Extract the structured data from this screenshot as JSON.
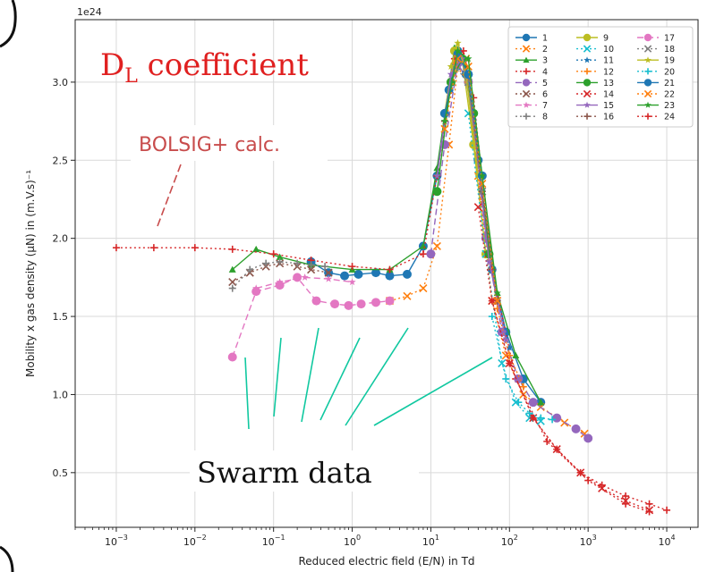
{
  "chart_data": {
    "type": "scatter",
    "title": "",
    "xlabel": "Reduced electric field (E/N) in Td",
    "ylabel": "Mobility x gas density (μN) in (m.V.s)⁻¹",
    "y_offset_label": "1e24",
    "xscale": "log",
    "xlim": [
      0.0003,
      25000
    ],
    "ylim": [
      0.15,
      3.4
    ],
    "grid": true,
    "legend_placement": "top-right",
    "x_ticks": [
      {
        "value": 0.001,
        "base": "10",
        "exp": "−3"
      },
      {
        "value": 0.01,
        "base": "10",
        "exp": "−2"
      },
      {
        "value": 0.1,
        "base": "10",
        "exp": "−1"
      },
      {
        "value": 1,
        "base": "10",
        "exp": "0"
      },
      {
        "value": 10,
        "base": "10",
        "exp": "1"
      },
      {
        "value": 100,
        "base": "10",
        "exp": "2"
      },
      {
        "value": 1000,
        "base": "10",
        "exp": "3"
      },
      {
        "value": 10000,
        "base": "10",
        "exp": "4"
      }
    ],
    "y_ticks": [
      {
        "value": 0.5,
        "label": "0.5"
      },
      {
        "value": 1.0,
        "label": "1.0"
      },
      {
        "value": 1.5,
        "label": "1.5"
      },
      {
        "value": 2.0,
        "label": "2.0"
      },
      {
        "value": 2.5,
        "label": "2.5"
      },
      {
        "value": 3.0,
        "label": "3.0"
      }
    ],
    "series": [
      {
        "name": "1",
        "color": "#1f77b4",
        "marker": "circle",
        "line": "solid",
        "x": [
          0.3,
          0.5,
          0.8,
          1.2,
          2,
          3,
          5,
          8,
          12,
          17,
          22,
          28,
          40,
          60,
          90,
          150,
          250
        ],
        "y": [
          1.85,
          1.78,
          1.76,
          1.77,
          1.78,
          1.76,
          1.77,
          1.95,
          2.4,
          2.95,
          3.2,
          3.05,
          2.5,
          1.8,
          1.4,
          1.1,
          0.95
        ]
      },
      {
        "name": "2",
        "color": "#ff7f0e",
        "marker": "x",
        "line": "dotted",
        "x": [
          3,
          5,
          8,
          12,
          17,
          22,
          28,
          40,
          60,
          90,
          150,
          250,
          500,
          900
        ],
        "y": [
          1.6,
          1.63,
          1.68,
          1.95,
          2.6,
          3.1,
          3.15,
          2.4,
          1.6,
          1.25,
          1.0,
          0.92,
          0.82,
          0.75
        ]
      },
      {
        "name": "3",
        "color": "#2ca02c",
        "marker": "triangle",
        "line": "solid",
        "x": [
          0.03,
          0.06,
          0.12,
          0.3,
          1,
          3,
          8,
          12,
          20,
          28,
          45,
          70,
          120,
          250
        ],
        "y": [
          1.8,
          1.93,
          1.88,
          1.83,
          1.8,
          1.8,
          1.95,
          2.45,
          3.22,
          3.1,
          2.3,
          1.65,
          1.25,
          0.95
        ]
      },
      {
        "name": "4",
        "color": "#d62728",
        "marker": "plus",
        "line": "dotted",
        "x": [
          0.001,
          0.003,
          0.01,
          0.03,
          0.1,
          0.3,
          1,
          3,
          8,
          12,
          20,
          26,
          35,
          60,
          120,
          300,
          1000,
          3000,
          6000
        ],
        "y": [
          1.94,
          1.94,
          1.94,
          1.93,
          1.9,
          1.86,
          1.82,
          1.8,
          1.9,
          2.4,
          3.15,
          3.2,
          2.9,
          1.8,
          1.1,
          0.7,
          0.45,
          0.3,
          0.25
        ]
      },
      {
        "name": "5",
        "color": "#9467bd",
        "marker": "circle",
        "line": "dashed",
        "x": [
          10,
          15,
          22,
          30,
          50,
          80,
          130,
          200,
          400,
          700,
          1000
        ],
        "y": [
          1.9,
          2.6,
          3.12,
          3.0,
          2.0,
          1.4,
          1.1,
          0.95,
          0.85,
          0.78,
          0.72
        ]
      },
      {
        "name": "6",
        "color": "#8c564b",
        "marker": "x",
        "line": "dotted",
        "x": [
          0.03,
          0.05,
          0.08,
          0.12,
          0.2,
          0.3,
          0.5
        ],
        "y": [
          1.72,
          1.78,
          1.82,
          1.84,
          1.82,
          1.8,
          1.78
        ]
      },
      {
        "name": "7",
        "color": "#e377c2",
        "marker": "star",
        "line": "dashed",
        "x": [
          0.06,
          0.12,
          0.25,
          0.5,
          1
        ],
        "y": [
          1.68,
          1.72,
          1.75,
          1.74,
          1.72
        ]
      },
      {
        "name": "8",
        "color": "#7f7f7f",
        "marker": "plus",
        "line": "dotted",
        "x": [
          0.03,
          0.05,
          0.08,
          0.12,
          0.2,
          0.3,
          0.45
        ],
        "y": [
          1.68,
          1.8,
          1.84,
          1.85,
          1.84,
          1.83,
          1.82
        ]
      },
      {
        "name": "9",
        "color": "#bcbd22",
        "marker": "circle",
        "line": "solid",
        "x": [
          15,
          20,
          25,
          35,
          50
        ],
        "y": [
          2.8,
          3.2,
          3.15,
          2.6,
          1.9
        ]
      },
      {
        "name": "10",
        "color": "#17becf",
        "marker": "x",
        "line": "dotted",
        "x": [
          30,
          50,
          80,
          120,
          180,
          250
        ],
        "y": [
          2.8,
          1.9,
          1.2,
          0.95,
          0.85,
          0.83
        ]
      },
      {
        "name": "11",
        "color": "#1f77b4",
        "marker": "star",
        "line": "dotted",
        "x": [
          20,
          30,
          45,
          70,
          100
        ],
        "y": [
          3.1,
          3.05,
          2.3,
          1.6,
          1.3
        ]
      },
      {
        "name": "12",
        "color": "#ff7f0e",
        "marker": "plus",
        "line": "dotted",
        "x": [
          20,
          30,
          45,
          70,
          100,
          150
        ],
        "y": [
          3.12,
          3.0,
          2.25,
          1.55,
          1.25,
          1.05
        ]
      },
      {
        "name": "13",
        "color": "#2ca02c",
        "marker": "circle",
        "line": "solid",
        "x": [
          12,
          18,
          25,
          35,
          55
        ],
        "y": [
          2.3,
          3.0,
          3.15,
          2.8,
          1.9
        ]
      },
      {
        "name": "14",
        "color": "#d62728",
        "marker": "x",
        "line": "dotted",
        "x": [
          40,
          60,
          100,
          200,
          400,
          800,
          1500,
          3000,
          6000
        ],
        "y": [
          2.2,
          1.6,
          1.2,
          0.85,
          0.65,
          0.5,
          0.4,
          0.32,
          0.26
        ]
      },
      {
        "name": "15",
        "color": "#9467bd",
        "marker": "star",
        "line": "solid",
        "x": [
          12,
          18,
          25,
          35,
          55,
          90
        ],
        "y": [
          2.4,
          3.05,
          3.15,
          2.75,
          1.85,
          1.35
        ]
      },
      {
        "name": "16",
        "color": "#8c564b",
        "marker": "plus",
        "line": "dotted",
        "x": [
          15,
          22,
          30,
          45,
          70
        ],
        "y": [
          2.75,
          3.18,
          3.05,
          2.3,
          1.6
        ]
      },
      {
        "name": "17",
        "color": "#e377c2",
        "marker": "circle",
        "line": "dashed",
        "x": [
          0.03,
          0.06,
          0.12,
          0.2,
          0.35,
          0.6,
          0.9,
          1.3,
          2,
          3
        ],
        "y": [
          1.24,
          1.66,
          1.7,
          1.75,
          1.6,
          1.58,
          1.57,
          1.58,
          1.59,
          1.6
        ]
      },
      {
        "name": "18",
        "color": "#7f7f7f",
        "marker": "x",
        "line": "dotted",
        "x": [
          20,
          30,
          45,
          70
        ],
        "y": [
          3.1,
          3.0,
          2.3,
          1.6
        ]
      },
      {
        "name": "19",
        "color": "#bcbd22",
        "marker": "star",
        "line": "solid",
        "x": [
          18,
          22,
          28,
          40
        ],
        "y": [
          3.1,
          3.25,
          3.05,
          2.4
        ]
      },
      {
        "name": "20",
        "color": "#17becf",
        "marker": "plus",
        "line": "dotted",
        "x": [
          60,
          90,
          130,
          180,
          250,
          350
        ],
        "y": [
          1.5,
          1.1,
          0.95,
          0.88,
          0.85,
          0.84
        ]
      },
      {
        "name": "21",
        "color": "#1f77b4",
        "marker": "circle",
        "line": "solid",
        "x": [
          15,
          22,
          30,
          45
        ],
        "y": [
          2.8,
          3.18,
          3.05,
          2.4
        ]
      },
      {
        "name": "22",
        "color": "#ff7f0e",
        "marker": "x",
        "line": "dotted",
        "x": [
          15,
          22,
          30,
          45,
          70
        ],
        "y": [
          2.7,
          3.15,
          3.1,
          2.35,
          1.6
        ]
      },
      {
        "name": "23",
        "color": "#2ca02c",
        "marker": "star",
        "line": "solid",
        "x": [
          15,
          22,
          30,
          45,
          70
        ],
        "y": [
          2.75,
          3.2,
          3.15,
          2.4,
          1.65
        ]
      },
      {
        "name": "24",
        "color": "#d62728",
        "marker": "plus",
        "line": "dotted",
        "x": [
          60,
          100,
          200,
          400,
          800,
          1500,
          3000,
          6000,
          10000
        ],
        "y": [
          1.6,
          1.2,
          0.85,
          0.65,
          0.5,
          0.42,
          0.35,
          0.3,
          0.26
        ]
      }
    ],
    "annotations": {
      "dl_main": "D",
      "dl_sub": "L",
      "dl_rest": " coefficient",
      "bolsig": "BOLSIG+ calc.",
      "swarm": "Swarm data"
    }
  },
  "colors": {
    "annotation_red": "#e02020",
    "bolsig_red": "#c84c4c",
    "swarm_lines": "#10c8a0",
    "grid": "#d9d9d9"
  }
}
